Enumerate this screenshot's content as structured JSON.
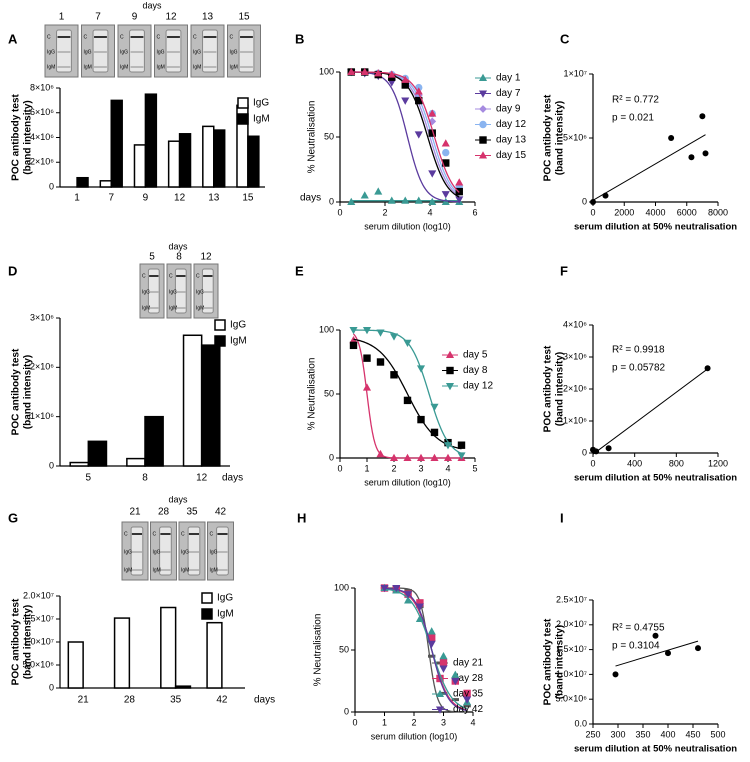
{
  "chart_data": [
    {
      "type": "bar",
      "panel": "A",
      "strip_header": "days",
      "strip_days": [
        "1",
        "7",
        "9",
        "12",
        "13",
        "15"
      ],
      "strip_marks": [
        "C",
        "IgG",
        "IgM"
      ],
      "categories": [
        "1",
        "7",
        "9",
        "12",
        "13",
        "15"
      ],
      "xlabel": "days",
      "ylabel": [
        "POC antibody test",
        "(band intensity)"
      ],
      "ylim": [
        0,
        8000000
      ],
      "yticks": [
        0,
        {
          "value": 2000000,
          "label": "2×10⁶"
        },
        {
          "value": 4000000,
          "label": "4×10⁶"
        },
        {
          "value": 6000000,
          "label": "6×10⁶"
        },
        {
          "value": 8000000,
          "label": "8×10⁶"
        }
      ],
      "bar_edge": "#000000",
      "series": [
        {
          "name": "IgG",
          "color": "#ffffff",
          "values": [
            0,
            500000,
            3400000,
            3700000,
            4900000,
            6600000
          ]
        },
        {
          "name": "IgM",
          "color": "#000000",
          "values": [
            750000,
            7000000,
            7500000,
            4300000,
            4600000,
            4100000
          ]
        }
      ]
    },
    {
      "type": "dose_response",
      "panel": "B",
      "xlabel": "serum dilution (log10)",
      "ylabel": "% Neutralisation",
      "xlim": [
        0,
        6
      ],
      "xticks": [
        0,
        2,
        4,
        6
      ],
      "ylim": [
        0,
        100
      ],
      "yticks": [
        0,
        50,
        100
      ],
      "series": [
        {
          "name": "day 1",
          "color": "#3a9a94",
          "marker": "triangle-up",
          "x": [
            0.5,
            1.1,
            1.7,
            2.3,
            2.9,
            3.5,
            4.1,
            4.7,
            5.3
          ],
          "values": [
            0,
            5,
            8,
            1,
            1,
            1,
            0,
            0,
            0
          ],
          "fit": {
            "top": 1,
            "bottom": 1,
            "logic50": 3,
            "hill": 1
          }
        },
        {
          "name": "day 7",
          "color": "#5b3b9e",
          "marker": "triangle-down",
          "x": [
            0.5,
            1.1,
            1.7,
            2.3,
            2.9,
            3.5,
            4.1,
            4.7,
            5.3
          ],
          "values": [
            100,
            99,
            97,
            92,
            78,
            52,
            22,
            6,
            2
          ],
          "fit": {
            "top": 100,
            "bottom": 0,
            "logic50": 3.0,
            "hill": 1.2
          }
        },
        {
          "name": "day 9",
          "color": "#a68be0",
          "marker": "diamond",
          "x": [
            0.5,
            1.1,
            1.7,
            2.3,
            2.9,
            3.5,
            4.1,
            4.7,
            5.3
          ],
          "values": [
            100,
            100,
            99,
            97,
            93,
            82,
            62,
            30,
            10
          ],
          "fit": {
            "top": 100,
            "bottom": 0,
            "logic50": 4.0,
            "hill": 1
          }
        },
        {
          "name": "day 12",
          "color": "#8ab4f0",
          "marker": "circle",
          "x": [
            0.5,
            1.1,
            1.7,
            2.3,
            2.9,
            3.5,
            4.1,
            4.7,
            5.3
          ],
          "values": [
            100,
            100,
            99,
            98,
            95,
            88,
            68,
            38,
            12
          ],
          "fit": {
            "top": 100,
            "bottom": 0,
            "logic50": 4.1,
            "hill": 1
          }
        },
        {
          "name": "day 13",
          "color": "#000000",
          "marker": "square",
          "x": [
            0.5,
            1.1,
            1.7,
            2.3,
            2.9,
            3.5,
            4.1,
            4.7,
            5.3
          ],
          "values": [
            100,
            100,
            98,
            96,
            90,
            78,
            53,
            30,
            8
          ],
          "fit": {
            "top": 100,
            "bottom": 0,
            "logic50": 3.9,
            "hill": 1
          }
        },
        {
          "name": "day 15",
          "color": "#d6336c",
          "marker": "triangle-up",
          "x": [
            0.5,
            1.1,
            1.7,
            2.3,
            2.9,
            3.5,
            4.1,
            4.7,
            5.3
          ],
          "values": [
            100,
            100,
            99,
            98,
            94,
            85,
            68,
            45,
            15
          ],
          "fit": {
            "top": 100,
            "bottom": 0,
            "logic50": 4.2,
            "hill": 1
          }
        }
      ]
    },
    {
      "type": "scatter",
      "panel": "C",
      "xlabel": "serum dilution at 50% neutralisation",
      "ylabel": [
        "POC antibody test",
        "(band intensity)"
      ],
      "xlim": [
        0,
        8000
      ],
      "xticks": [
        0,
        2000,
        4000,
        6000,
        8000
      ],
      "ylim": [
        0,
        10000000
      ],
      "yticks": [
        0,
        {
          "value": 5000000,
          "label": "5×10⁶"
        },
        {
          "value": 10000000,
          "label": "1×10⁷"
        }
      ],
      "x": [
        0,
        800,
        5000,
        6300,
        7000,
        7200
      ],
      "values": [
        0,
        500000,
        5000000,
        3500000,
        6700000,
        3800000
      ],
      "color": "#000000",
      "fit_line": true,
      "annotations": [
        "R² = 0.772",
        "p = 0.021"
      ]
    },
    {
      "type": "bar",
      "panel": "D",
      "strip_header": "days",
      "strip_days": [
        "5",
        "8",
        "12"
      ],
      "strip_marks": [
        "C",
        "IgG",
        "IgM"
      ],
      "categories": [
        "5",
        "8",
        "12"
      ],
      "xlabel": "days",
      "ylabel": [
        "POC antibody test",
        "(band intensity)"
      ],
      "ylim": [
        0,
        3000000
      ],
      "yticks": [
        0,
        {
          "value": 1000000,
          "label": "1×10⁶"
        },
        {
          "value": 2000000,
          "label": "2×10⁶"
        },
        {
          "value": 3000000,
          "label": "3×10⁶"
        }
      ],
      "bar_edge": "#000000",
      "series": [
        {
          "name": "IgG",
          "color": "#ffffff",
          "values": [
            70000,
            150000,
            2650000
          ]
        },
        {
          "name": "IgM",
          "color": "#000000",
          "values": [
            500000,
            1000000,
            2450000
          ]
        }
      ]
    },
    {
      "type": "dose_response",
      "panel": "E",
      "xlabel": "serum dilution (log10)",
      "ylabel": "% Neutralisation",
      "xlim": [
        0,
        5
      ],
      "xticks": [
        0,
        1,
        2,
        3,
        4,
        5
      ],
      "ylim": [
        0,
        100
      ],
      "yticks": [
        0,
        50,
        100
      ],
      "series": [
        {
          "name": "day 5",
          "color": "#d6336c",
          "marker": "triangle-up",
          "x": [
            0.5,
            1,
            1.5,
            2,
            2.5,
            3,
            3.5,
            4,
            4.5
          ],
          "values": [
            92,
            55,
            3,
            0,
            0,
            0,
            0,
            0,
            0
          ],
          "fit": {
            "top": 100,
            "bottom": 0,
            "logic50": 1.0,
            "hill": 3
          }
        },
        {
          "name": "day 8",
          "color": "#000000",
          "marker": "square",
          "x": [
            0.5,
            1,
            1.5,
            2,
            2.5,
            3,
            3.5,
            4,
            4.5
          ],
          "values": [
            88,
            78,
            75,
            65,
            45,
            30,
            20,
            12,
            10
          ],
          "fit": {
            "top": 95,
            "bottom": 5,
            "logic50": 2.5,
            "hill": 0.8
          }
        },
        {
          "name": "day 12",
          "color": "#3a9a94",
          "marker": "triangle-down",
          "x": [
            0.5,
            1,
            1.5,
            2,
            2.5,
            3,
            3.5,
            4,
            4.5
          ],
          "values": [
            100,
            100,
            98,
            95,
            90,
            70,
            40,
            10,
            2
          ],
          "fit": {
            "top": 100,
            "bottom": 0,
            "logic50": 3.3,
            "hill": 1.2
          }
        }
      ]
    },
    {
      "type": "scatter",
      "panel": "F",
      "xlabel": "serum dilution at 50% neutralisation",
      "ylabel": [
        "POC antibody test",
        "(band intensity)"
      ],
      "xlim": [
        0,
        1200
      ],
      "xticks": [
        0,
        400,
        800,
        1200
      ],
      "ylim": [
        0,
        4000000
      ],
      "yticks": [
        0,
        {
          "value": 1000000,
          "label": "1×10⁶"
        },
        {
          "value": 2000000,
          "label": "2×10⁶"
        },
        {
          "value": 3000000,
          "label": "3×10⁶"
        },
        {
          "value": 4000000,
          "label": "4×10⁶"
        }
      ],
      "x": [
        0,
        30,
        150,
        1100
      ],
      "values": [
        100000,
        50000,
        150000,
        2650000
      ],
      "color": "#000000",
      "fit_line": true,
      "annotations": [
        "R² = 0.9918",
        "p = 0.05782"
      ]
    },
    {
      "type": "bar",
      "panel": "G",
      "strip_header": "days",
      "strip_days": [
        "21",
        "28",
        "35",
        "42"
      ],
      "strip_marks": [
        "C",
        "IgG",
        "IgM"
      ],
      "categories": [
        "21",
        "28",
        "35",
        "42"
      ],
      "xlabel": "days",
      "ylabel": [
        "POC antibody test",
        "(band intensity)"
      ],
      "ylim": [
        0,
        20000000
      ],
      "yticks": [
        0,
        {
          "value": 5000000,
          "label": "5.0×10⁶"
        },
        {
          "value": 10000000,
          "label": "1.0×10⁷"
        },
        {
          "value": 15000000,
          "label": "1.5×10⁷"
        },
        {
          "value": 20000000,
          "label": "2.0×10⁷"
        }
      ],
      "bar_edge": "#000000",
      "series": [
        {
          "name": "IgG",
          "color": "#ffffff",
          "values": [
            10000000,
            15200000,
            17500000,
            14200000
          ]
        },
        {
          "name": "IgM",
          "color": "#000000",
          "values": [
            0,
            0,
            400000,
            0
          ]
        }
      ]
    },
    {
      "type": "dose_response",
      "panel": "H",
      "xlabel": "serum dilution (log10)",
      "ylabel": "% Neutralisation",
      "xlim": [
        0,
        4
      ],
      "xticks": [
        0,
        1,
        2,
        3,
        4
      ],
      "ylim": [
        0,
        100
      ],
      "yticks": [
        0,
        50,
        100
      ],
      "series": [
        {
          "name": "day 21",
          "color": "#555555",
          "marker": "dash",
          "x": [
            1,
            1.4,
            1.8,
            2.2,
            2.6,
            3,
            3.4,
            3.8
          ],
          "values": [
            100,
            100,
            98,
            85,
            45,
            15,
            10,
            5
          ],
          "fit": {
            "top": 100,
            "bottom": 0,
            "logic50": 2.5,
            "hill": 3
          }
        },
        {
          "name": "day 28",
          "color": "#d6336c",
          "marker": "square",
          "x": [
            1,
            1.4,
            1.8,
            2.2,
            2.6,
            3,
            3.4,
            3.8
          ],
          "values": [
            100,
            99,
            95,
            88,
            60,
            40,
            25,
            15
          ],
          "fit": {
            "top": 100,
            "bottom": 0,
            "logic50": 2.6,
            "hill": 1.5
          }
        },
        {
          "name": "day 35",
          "color": "#3a9a94",
          "marker": "triangle-up",
          "x": [
            1,
            1.4,
            1.8,
            2.2,
            2.6,
            3,
            3.4,
            3.8
          ],
          "values": [
            100,
            98,
            90,
            75,
            65,
            45,
            30,
            8
          ],
          "fit": {
            "top": 100,
            "bottom": 0,
            "logic50": 2.6,
            "hill": 1.3
          }
        },
        {
          "name": "day 42",
          "color": "#5b3b9e",
          "marker": "triangle-down",
          "x": [
            1,
            1.4,
            1.8,
            2.2,
            2.6,
            3,
            3.4,
            3.8
          ],
          "values": [
            100,
            100,
            95,
            85,
            55,
            35,
            25,
            10
          ],
          "fit": {
            "top": 100,
            "bottom": 0,
            "logic50": 2.6,
            "hill": 1.6
          }
        }
      ]
    },
    {
      "type": "scatter",
      "panel": "I",
      "xlabel": "serum dilution at 50% neutralisation",
      "ylabel": [
        "POC antibody test",
        "(band intensity)"
      ],
      "xlim": [
        250,
        500
      ],
      "xticks": [
        250,
        300,
        350,
        400,
        450,
        500
      ],
      "ylim": [
        0,
        25000000
      ],
      "yticks": [
        {
          "value": 0,
          "label": "0.0"
        },
        {
          "value": 5000000,
          "label": "5.0×10⁶"
        },
        {
          "value": 10000000,
          "label": "1.0×10⁷"
        },
        {
          "value": 15000000,
          "label": "1.5×10⁷"
        },
        {
          "value": 20000000,
          "label": "2.0×10⁷"
        },
        {
          "value": 25000000,
          "label": "2.5×10⁷"
        }
      ],
      "x": [
        295,
        375,
        400,
        460
      ],
      "values": [
        10000000,
        17800000,
        14300000,
        15300000
      ],
      "color": "#000000",
      "fit_line": true,
      "annotations": [
        "R² = 0.4755",
        "p = 0.3104"
      ]
    }
  ]
}
